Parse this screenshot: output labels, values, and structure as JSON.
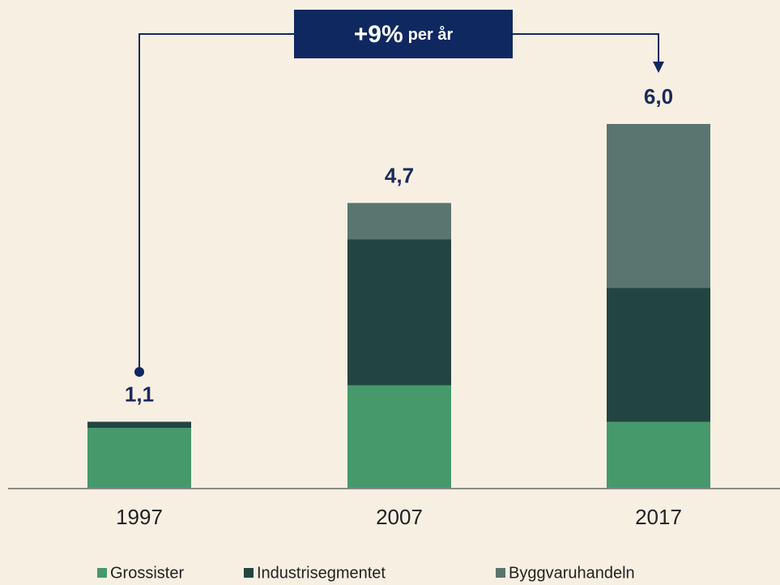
{
  "chart_data": {
    "type": "stacked_bar",
    "categories": [
      "1997",
      "2007",
      "2017"
    ],
    "series": [
      {
        "name": "Grossister",
        "color": "#45996b",
        "values": [
          1.0,
          1.7,
          1.1
        ]
      },
      {
        "name": "Industrisegmentet",
        "color": "#234542",
        "values": [
          0.1,
          2.4,
          2.2
        ]
      },
      {
        "name": "Byggvaruhandeln",
        "color": "#5a7570",
        "values": [
          0,
          0.6,
          2.7
        ]
      }
    ],
    "totals": [
      1.1,
      4.7,
      6.0
    ],
    "total_labels": [
      "1,1",
      "4,7",
      "6,0"
    ],
    "annotation": {
      "value": "+9%",
      "text": "per år"
    },
    "ylim": [
      0,
      6
    ]
  }
}
